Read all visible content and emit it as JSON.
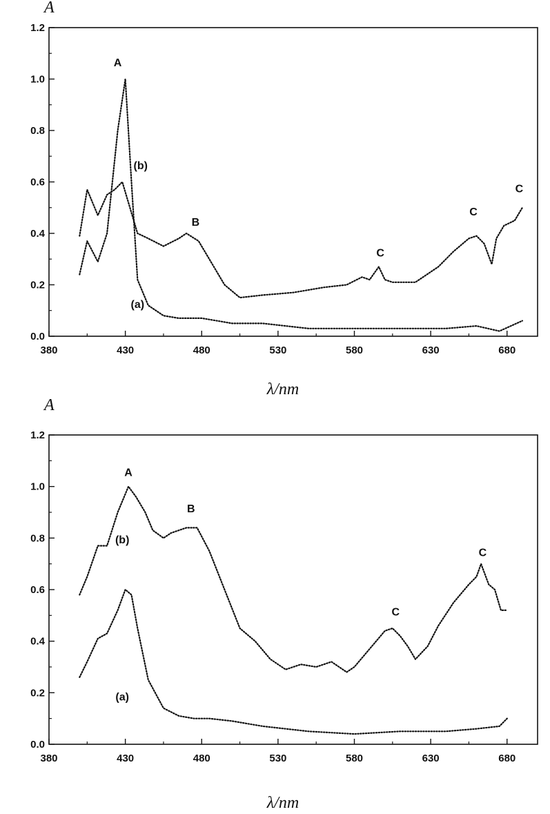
{
  "colors": {
    "ink": "#111111",
    "background": "#ffffff"
  },
  "chart_data": [
    {
      "type": "line",
      "ylabel": "A",
      "xlabel": "λ/nm",
      "xlim": [
        380,
        700
      ],
      "ylim": [
        0,
        1.2
      ],
      "xticks": [
        "380",
        "430",
        "480",
        "530",
        "580",
        "630",
        "680"
      ],
      "yticks": [
        "0.0",
        "0.2",
        "0.4",
        "0.6",
        "0.8",
        "1.0",
        "1.2"
      ],
      "grid": false,
      "series": [
        {
          "name": "(a)",
          "x": [
            400,
            405,
            412,
            418,
            425,
            430,
            434,
            438,
            445,
            455,
            465,
            480,
            490,
            500,
            520,
            550,
            580,
            610,
            640,
            660,
            675,
            690
          ],
          "values": [
            0.24,
            0.37,
            0.29,
            0.4,
            0.8,
            1.0,
            0.6,
            0.22,
            0.12,
            0.08,
            0.07,
            0.07,
            0.06,
            0.05,
            0.05,
            0.03,
            0.03,
            0.03,
            0.03,
            0.04,
            0.02,
            0.06
          ]
        },
        {
          "name": "(b)",
          "x": [
            400,
            405,
            412,
            418,
            423,
            428,
            433,
            438,
            445,
            455,
            465,
            470,
            478,
            485,
            495,
            505,
            520,
            540,
            560,
            575,
            585,
            590,
            596,
            600,
            605,
            620,
            635,
            645,
            655,
            660,
            665,
            670,
            673,
            678,
            685,
            690
          ],
          "values": [
            0.39,
            0.57,
            0.47,
            0.55,
            0.57,
            0.6,
            0.5,
            0.4,
            0.38,
            0.35,
            0.38,
            0.4,
            0.37,
            0.3,
            0.2,
            0.15,
            0.16,
            0.17,
            0.19,
            0.2,
            0.23,
            0.22,
            0.27,
            0.22,
            0.21,
            0.21,
            0.27,
            0.33,
            0.38,
            0.39,
            0.36,
            0.28,
            0.38,
            0.43,
            0.45,
            0.5
          ]
        }
      ],
      "annotations": [
        {
          "text": "A",
          "x": 425,
          "y": 1.05
        },
        {
          "text": "(b)",
          "x": 440,
          "y": 0.65
        },
        {
          "text": "B",
          "x": 476,
          "y": 0.43
        },
        {
          "text": "C",
          "x": 597,
          "y": 0.31
        },
        {
          "text": "C",
          "x": 658,
          "y": 0.47
        },
        {
          "text": "C",
          "x": 688,
          "y": 0.56
        },
        {
          "text": "(a)",
          "x": 438,
          "y": 0.11
        }
      ]
    },
    {
      "type": "line",
      "ylabel": "A",
      "xlabel": "λ/nm",
      "xlim": [
        380,
        700
      ],
      "ylim": [
        0,
        1.2
      ],
      "xticks": [
        "380",
        "430",
        "480",
        "530",
        "580",
        "630",
        "680"
      ],
      "yticks": [
        "0.0",
        "0.2",
        "0.4",
        "0.6",
        "0.8",
        "1.0",
        "1.2"
      ],
      "grid": false,
      "series": [
        {
          "name": "(a)",
          "x": [
            400,
            405,
            412,
            418,
            425,
            430,
            434,
            438,
            445,
            455,
            465,
            475,
            485,
            500,
            520,
            550,
            580,
            610,
            640,
            660,
            675,
            680
          ],
          "values": [
            0.26,
            0.32,
            0.41,
            0.43,
            0.52,
            0.6,
            0.58,
            0.45,
            0.25,
            0.14,
            0.11,
            0.1,
            0.1,
            0.09,
            0.07,
            0.05,
            0.04,
            0.05,
            0.05,
            0.06,
            0.07,
            0.1
          ]
        },
        {
          "name": "(b)",
          "x": [
            400,
            405,
            412,
            418,
            425,
            432,
            437,
            443,
            448,
            455,
            460,
            470,
            477,
            485,
            495,
            505,
            515,
            525,
            535,
            545,
            555,
            565,
            575,
            580,
            590,
            600,
            605,
            610,
            615,
            620,
            628,
            635,
            645,
            655,
            660,
            663,
            668,
            672,
            676,
            680
          ],
          "values": [
            0.58,
            0.65,
            0.77,
            0.77,
            0.9,
            1.0,
            0.96,
            0.9,
            0.83,
            0.8,
            0.82,
            0.84,
            0.84,
            0.75,
            0.6,
            0.45,
            0.4,
            0.33,
            0.29,
            0.31,
            0.3,
            0.32,
            0.28,
            0.3,
            0.37,
            0.44,
            0.45,
            0.42,
            0.38,
            0.33,
            0.38,
            0.46,
            0.55,
            0.62,
            0.65,
            0.7,
            0.62,
            0.6,
            0.52,
            0.52
          ]
        }
      ],
      "annotations": [
        {
          "text": "A",
          "x": 432,
          "y": 1.04
        },
        {
          "text": "(b)",
          "x": 428,
          "y": 0.78
        },
        {
          "text": "B",
          "x": 473,
          "y": 0.9
        },
        {
          "text": "C",
          "x": 607,
          "y": 0.5
        },
        {
          "text": "C",
          "x": 664,
          "y": 0.73
        },
        {
          "text": "(a)",
          "x": 428,
          "y": 0.17
        }
      ]
    }
  ]
}
